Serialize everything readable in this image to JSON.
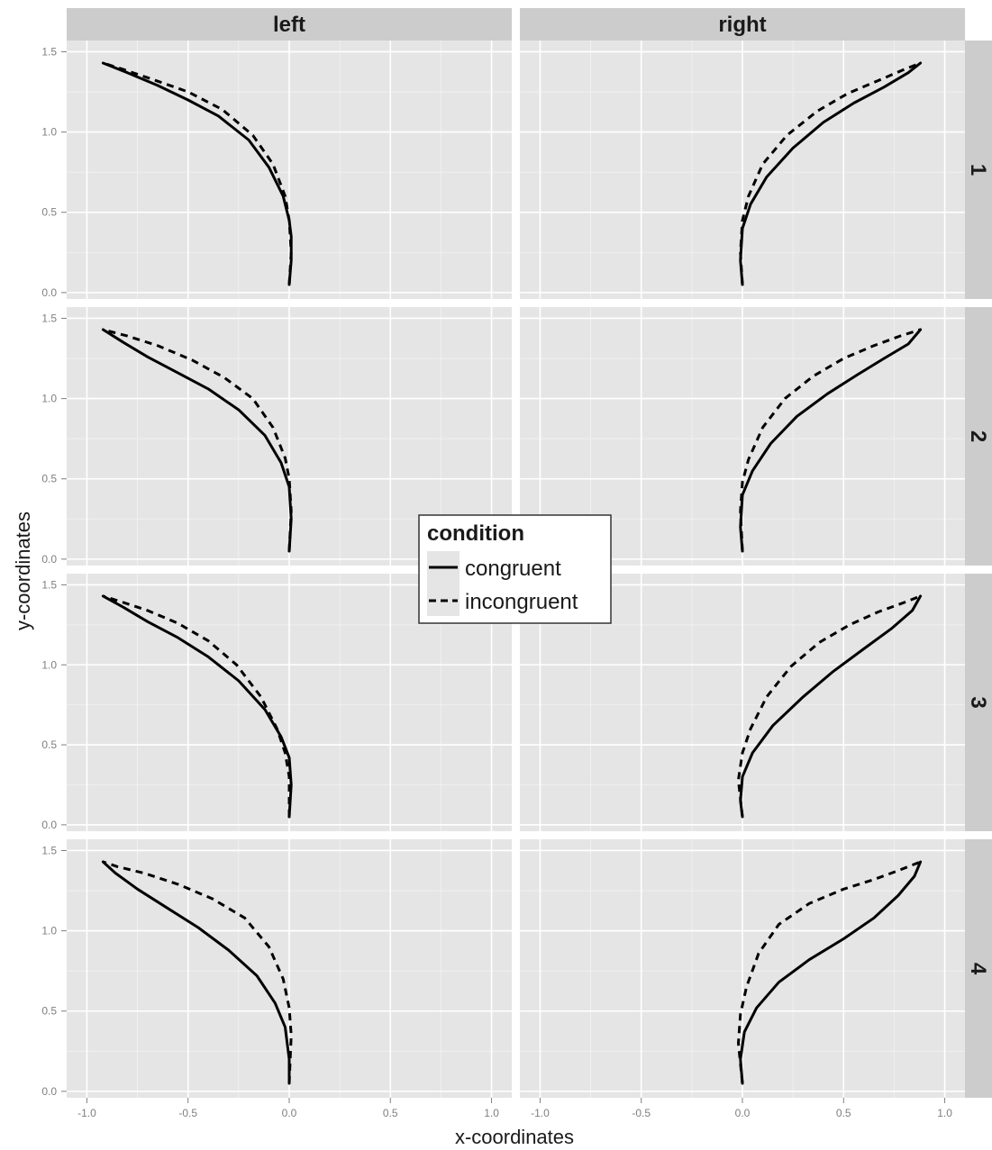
{
  "chart_data": {
    "type": "line",
    "title": "",
    "xlabel": "x-coordinates",
    "ylabel": "y-coordinates",
    "xlim": [
      -1.1,
      1.1
    ],
    "ylim": [
      -0.04,
      1.57
    ],
    "x_ticks": [
      "-1.0",
      "-0.5",
      "0.0",
      "0.5",
      "1.0"
    ],
    "y_ticks": [
      "0.0",
      "0.5",
      "1.0",
      "1.5"
    ],
    "grid": true,
    "facet_columns": [
      "left",
      "right"
    ],
    "facet_rows": [
      "1",
      "2",
      "3",
      "4"
    ],
    "legend": {
      "title": "condition",
      "position": "center",
      "entries": [
        {
          "label": "congruent",
          "linetype": "solid"
        },
        {
          "label": "incongruent",
          "linetype": "dashed"
        }
      ]
    },
    "series": [
      {
        "name": "congruent",
        "panel": {
          "column": "left",
          "row": "1"
        },
        "x": [
          0.0,
          0.01,
          0.01,
          0.0,
          -0.03,
          -0.1,
          -0.2,
          -0.35,
          -0.5,
          -0.65,
          -0.8,
          -0.92
        ],
        "y": [
          0.05,
          0.2,
          0.35,
          0.45,
          0.6,
          0.78,
          0.95,
          1.1,
          1.2,
          1.29,
          1.37,
          1.43
        ]
      },
      {
        "name": "incongruent",
        "panel": {
          "column": "left",
          "row": "1"
        },
        "x": [
          0.0,
          0.01,
          0.0,
          -0.02,
          -0.08,
          -0.18,
          -0.33,
          -0.5,
          -0.68,
          -0.82,
          -0.92
        ],
        "y": [
          0.05,
          0.25,
          0.45,
          0.6,
          0.8,
          0.98,
          1.14,
          1.25,
          1.33,
          1.39,
          1.43
        ]
      },
      {
        "name": "congruent",
        "panel": {
          "column": "left",
          "row": "2"
        },
        "x": [
          0.0,
          0.01,
          0.0,
          -0.04,
          -0.12,
          -0.25,
          -0.4,
          -0.55,
          -0.7,
          -0.82,
          -0.92
        ],
        "y": [
          0.05,
          0.25,
          0.45,
          0.6,
          0.77,
          0.93,
          1.06,
          1.16,
          1.26,
          1.35,
          1.43
        ]
      },
      {
        "name": "incongruent",
        "panel": {
          "column": "left",
          "row": "2"
        },
        "x": [
          0.0,
          0.01,
          0.0,
          -0.02,
          -0.08,
          -0.18,
          -0.32,
          -0.48,
          -0.65,
          -0.8,
          -0.92
        ],
        "y": [
          0.05,
          0.3,
          0.5,
          0.63,
          0.82,
          1.0,
          1.13,
          1.24,
          1.33,
          1.39,
          1.43
        ]
      },
      {
        "name": "congruent",
        "panel": {
          "column": "left",
          "row": "3"
        },
        "x": [
          0.0,
          0.01,
          0.0,
          -0.04,
          -0.12,
          -0.25,
          -0.4,
          -0.55,
          -0.7,
          -0.82,
          -0.92
        ],
        "y": [
          0.05,
          0.25,
          0.42,
          0.55,
          0.72,
          0.9,
          1.05,
          1.17,
          1.27,
          1.36,
          1.43
        ]
      },
      {
        "name": "incongruent",
        "panel": {
          "column": "left",
          "row": "3"
        },
        "x": [
          0.0,
          0.0,
          -0.02,
          -0.06,
          -0.14,
          -0.26,
          -0.4,
          -0.55,
          -0.7,
          -0.82,
          -0.92
        ],
        "y": [
          0.05,
          0.3,
          0.45,
          0.6,
          0.8,
          1.0,
          1.15,
          1.26,
          1.34,
          1.39,
          1.43
        ]
      },
      {
        "name": "congruent",
        "panel": {
          "column": "left",
          "row": "4"
        },
        "x": [
          0.0,
          0.0,
          -0.02,
          -0.07,
          -0.16,
          -0.3,
          -0.45,
          -0.6,
          -0.75,
          -0.86,
          -0.92
        ],
        "y": [
          0.05,
          0.2,
          0.4,
          0.55,
          0.72,
          0.88,
          1.02,
          1.14,
          1.26,
          1.36,
          1.43
        ]
      },
      {
        "name": "incongruent",
        "panel": {
          "column": "left",
          "row": "4"
        },
        "x": [
          0.0,
          0.01,
          0.0,
          -0.03,
          -0.1,
          -0.22,
          -0.38,
          -0.55,
          -0.72,
          -0.85,
          -0.92
        ],
        "y": [
          0.05,
          0.35,
          0.52,
          0.7,
          0.9,
          1.08,
          1.2,
          1.29,
          1.36,
          1.4,
          1.43
        ]
      },
      {
        "name": "congruent",
        "panel": {
          "column": "right",
          "row": "1"
        },
        "x": [
          0.0,
          -0.01,
          0.0,
          0.04,
          0.12,
          0.25,
          0.4,
          0.55,
          0.7,
          0.82,
          0.88
        ],
        "y": [
          0.05,
          0.2,
          0.4,
          0.55,
          0.72,
          0.9,
          1.06,
          1.18,
          1.28,
          1.37,
          1.43
        ]
      },
      {
        "name": "incongruent",
        "panel": {
          "column": "right",
          "row": "1"
        },
        "x": [
          0.0,
          -0.01,
          0.0,
          0.03,
          0.1,
          0.22,
          0.37,
          0.52,
          0.67,
          0.8,
          0.88
        ],
        "y": [
          0.05,
          0.25,
          0.45,
          0.6,
          0.8,
          0.98,
          1.13,
          1.24,
          1.32,
          1.39,
          1.43
        ]
      },
      {
        "name": "congruent",
        "panel": {
          "column": "right",
          "row": "2"
        },
        "x": [
          0.0,
          -0.01,
          0.0,
          0.05,
          0.14,
          0.27,
          0.42,
          0.57,
          0.7,
          0.82,
          0.88
        ],
        "y": [
          0.05,
          0.2,
          0.4,
          0.55,
          0.72,
          0.89,
          1.03,
          1.15,
          1.25,
          1.34,
          1.43
        ]
      },
      {
        "name": "incongruent",
        "panel": {
          "column": "right",
          "row": "2"
        },
        "x": [
          0.0,
          -0.01,
          0.0,
          0.03,
          0.1,
          0.21,
          0.35,
          0.5,
          0.65,
          0.78,
          0.88
        ],
        "y": [
          0.05,
          0.3,
          0.48,
          0.62,
          0.82,
          1.0,
          1.14,
          1.25,
          1.33,
          1.39,
          1.43
        ]
      },
      {
        "name": "congruent",
        "panel": {
          "column": "right",
          "row": "3"
        },
        "x": [
          0.0,
          -0.01,
          0.0,
          0.05,
          0.15,
          0.3,
          0.45,
          0.6,
          0.74,
          0.84,
          0.88
        ],
        "y": [
          0.05,
          0.15,
          0.3,
          0.45,
          0.62,
          0.8,
          0.96,
          1.1,
          1.23,
          1.34,
          1.43
        ]
      },
      {
        "name": "incongruent",
        "panel": {
          "column": "right",
          "row": "3"
        },
        "x": [
          0.0,
          -0.02,
          0.0,
          0.04,
          0.12,
          0.24,
          0.38,
          0.53,
          0.67,
          0.8,
          0.88
        ],
        "y": [
          0.05,
          0.28,
          0.45,
          0.6,
          0.8,
          0.99,
          1.14,
          1.25,
          1.33,
          1.39,
          1.43
        ]
      },
      {
        "name": "congruent",
        "panel": {
          "column": "right",
          "row": "4"
        },
        "x": [
          0.0,
          -0.01,
          0.01,
          0.07,
          0.18,
          0.33,
          0.5,
          0.65,
          0.77,
          0.85,
          0.88
        ],
        "y": [
          0.05,
          0.2,
          0.37,
          0.52,
          0.68,
          0.82,
          0.95,
          1.08,
          1.22,
          1.34,
          1.43
        ]
      },
      {
        "name": "incongruent",
        "panel": {
          "column": "right",
          "row": "4"
        },
        "x": [
          0.0,
          -0.02,
          -0.01,
          0.02,
          0.08,
          0.18,
          0.33,
          0.5,
          0.65,
          0.78,
          0.88
        ],
        "y": [
          0.05,
          0.3,
          0.48,
          0.65,
          0.86,
          1.04,
          1.17,
          1.26,
          1.32,
          1.38,
          1.43
        ]
      }
    ]
  }
}
